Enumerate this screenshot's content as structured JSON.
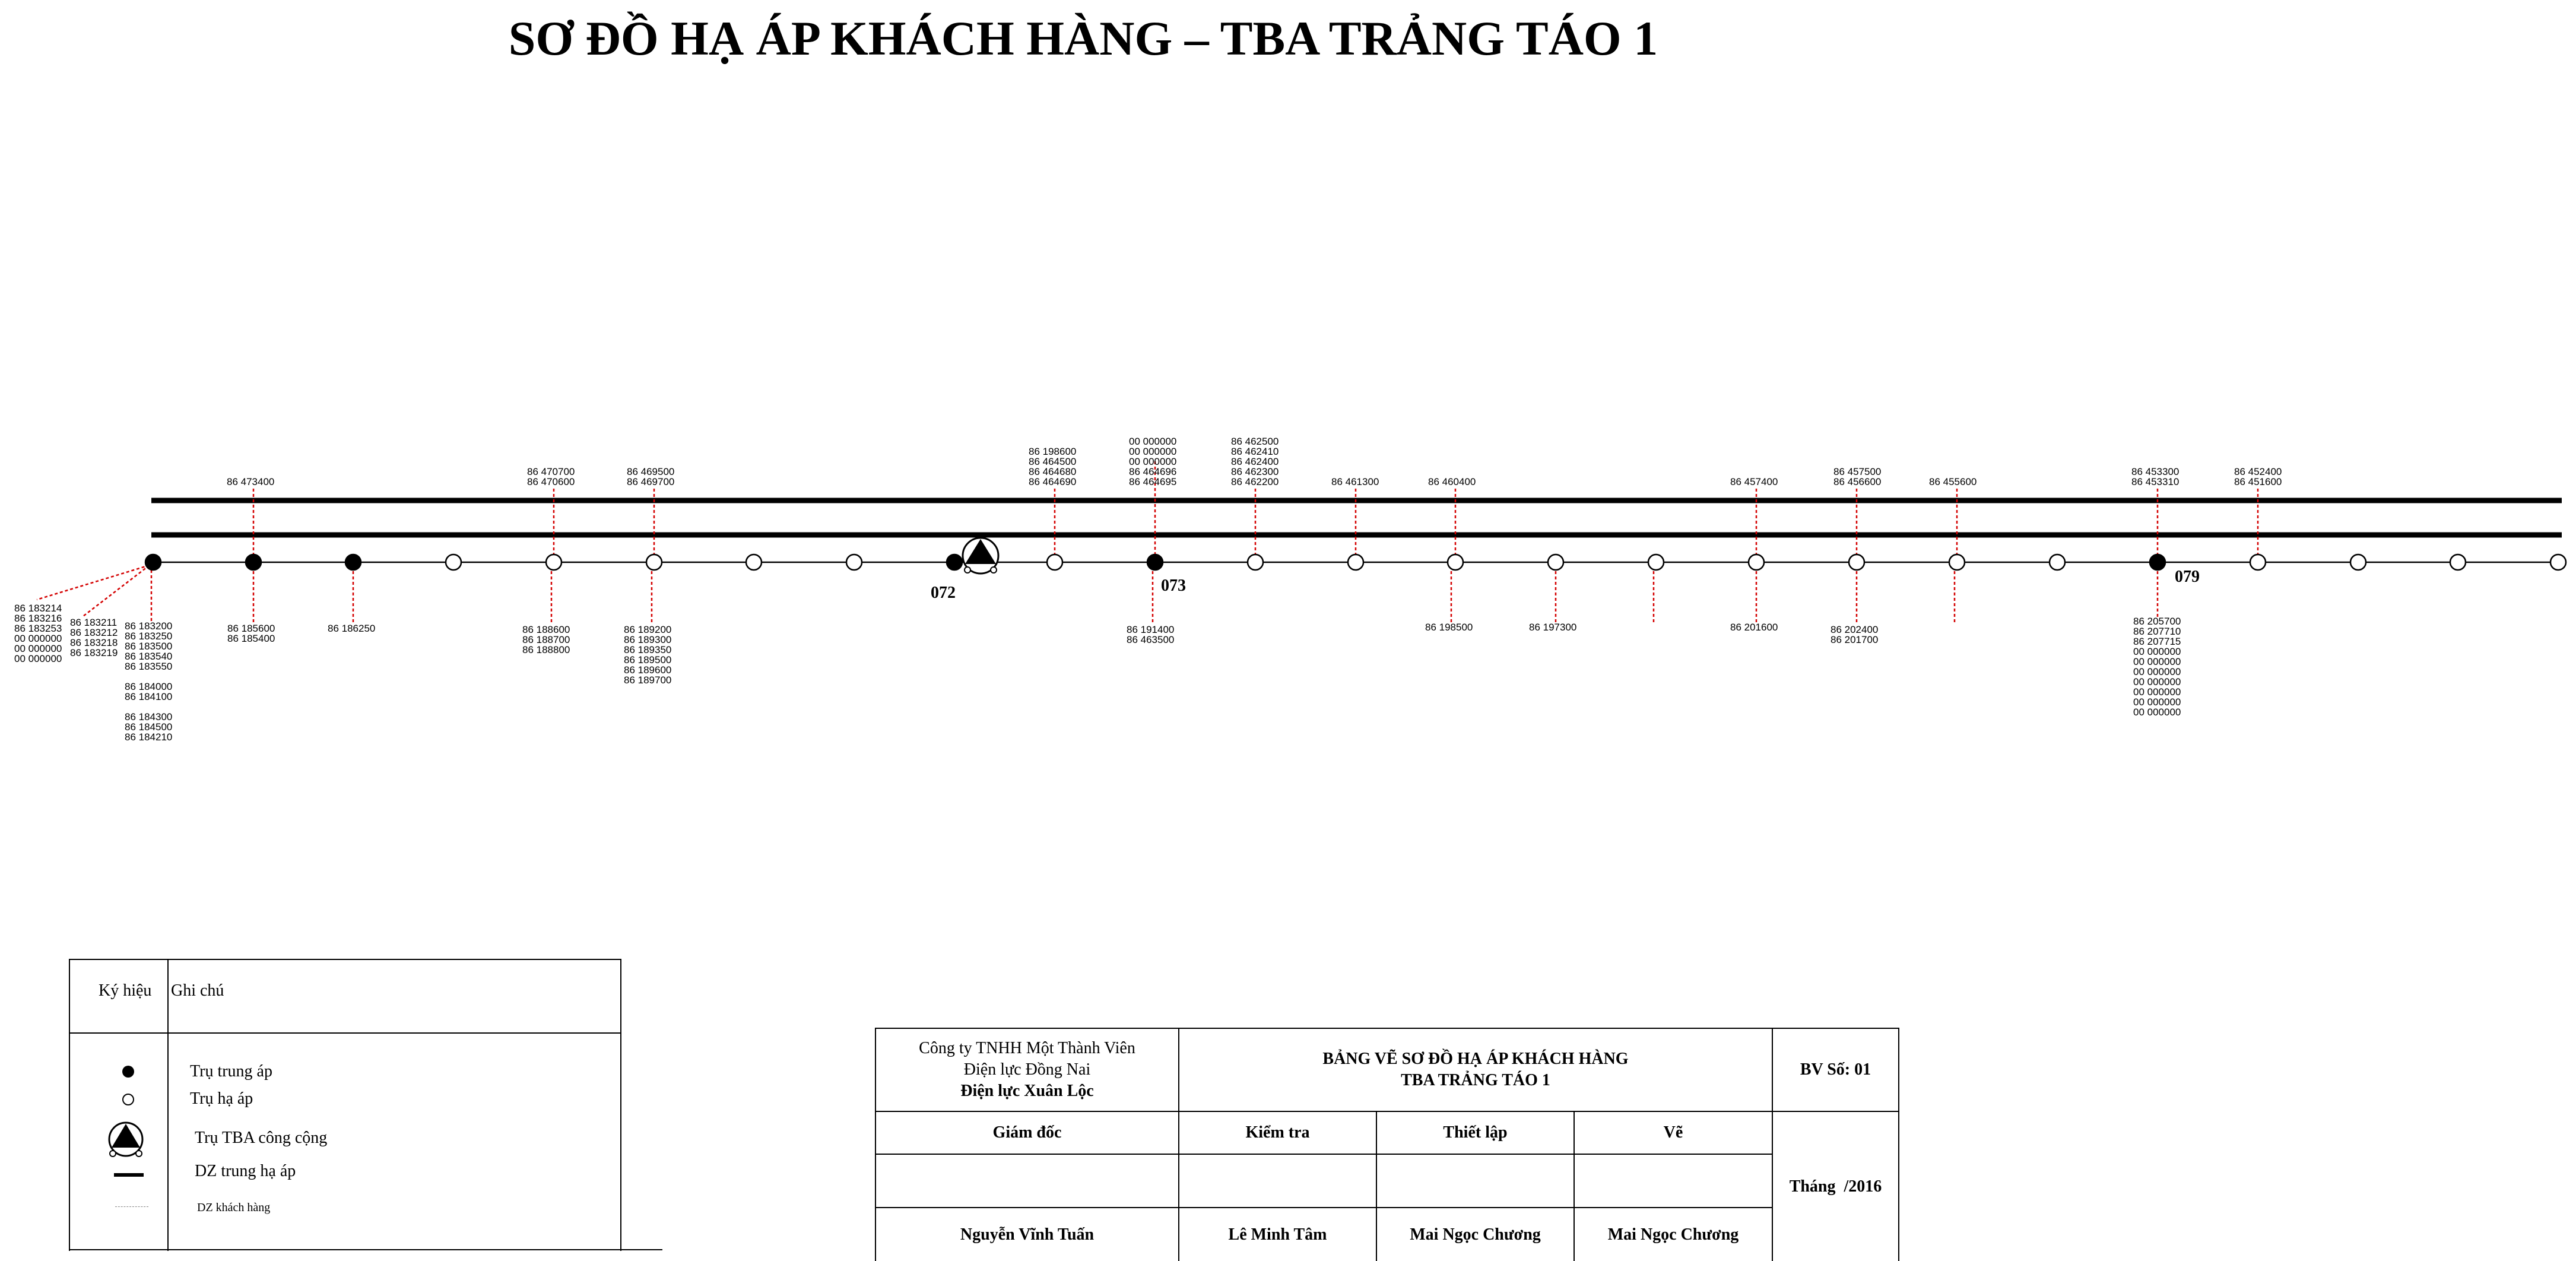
{
  "title": "SƠ ĐỒ HẠ ÁP KHÁCH HÀNG – TBA TRẢNG TÁO 1",
  "colors": {
    "line": "#000000",
    "customer_drop": "#d40000",
    "label": "#000000"
  },
  "poles": [
    {
      "type": "mv",
      "pos": 258
    },
    {
      "type": "mv",
      "pos": 427
    },
    {
      "type": "mv",
      "pos": 595
    },
    {
      "type": "lv",
      "pos": 764
    },
    {
      "type": "lv",
      "pos": 933
    },
    {
      "type": "lv",
      "pos": 1102
    },
    {
      "type": "lv",
      "pos": 1270
    },
    {
      "type": "lv",
      "pos": 1439
    },
    {
      "type": "mv",
      "pos": 1608
    },
    {
      "type": "lv",
      "pos": 1777
    },
    {
      "type": "mv",
      "pos": 1946
    },
    {
      "type": "lv",
      "pos": 2115
    },
    {
      "type": "lv",
      "pos": 2284
    },
    {
      "type": "lv",
      "pos": 2452
    },
    {
      "type": "lv",
      "pos": 2621
    },
    {
      "type": "lv",
      "pos": 2790
    },
    {
      "type": "lv",
      "pos": 2959
    },
    {
      "type": "lv",
      "pos": 3128
    },
    {
      "type": "lv",
      "pos": 3297
    },
    {
      "type": "lv",
      "pos": 3466
    },
    {
      "type": "mv",
      "pos": 3635
    },
    {
      "type": "lv",
      "pos": 3804
    },
    {
      "type": "lv",
      "pos": 3973
    },
    {
      "type": "lv",
      "pos": 4141
    },
    {
      "type": "lv",
      "pos": 4310
    }
  ],
  "pole_ids": [
    "072",
    "073",
    "079"
  ],
  "substation_label": "TBA",
  "customer_groups_above": [
    {
      "lines": [
        "86  473400"
      ]
    },
    {
      "lines": [
        "86  470700",
        "86  470600"
      ]
    },
    {
      "lines": [
        "86  469500",
        "86  469700"
      ]
    },
    {
      "lines": [
        "86  198600",
        "86  464500",
        "86  464680",
        "86  464690"
      ]
    },
    {
      "lines": [
        "00  000000",
        "00  000000",
        "00  000000",
        "86  464696",
        "86  464695"
      ]
    },
    {
      "lines": [
        "86  462500",
        "86  462410",
        "86  462400",
        "86  462300",
        "86  462200"
      ]
    },
    {
      "lines": [
        "86  461300"
      ]
    },
    {
      "lines": [
        "86  460400"
      ]
    },
    {
      "lines": [
        "86  457400"
      ]
    },
    {
      "lines": [
        "86  457500",
        "86  456600"
      ]
    },
    {
      "lines": [
        "86  455600"
      ]
    },
    {
      "lines": [
        "86  453300",
        "86  453310"
      ]
    },
    {
      "lines": [
        "86  452400",
        "86  451600"
      ]
    }
  ],
  "customer_groups_below": [
    {
      "lines": [
        "86  183214",
        "86  183216",
        "86  183253",
        "00  000000",
        "00  000000",
        "00  000000"
      ]
    },
    {
      "lines": [
        "86  183211",
        "86  183212",
        "86  183218",
        "86  183219"
      ]
    },
    {
      "lines": [
        "86  183200",
        "86  183250",
        "86  183500",
        "86  183540",
        "86  183550",
        "",
        "86  184000",
        "86  184100",
        "",
        "86  184300",
        "86  184500",
        "86  184210"
      ]
    },
    {
      "lines": [
        "86  185600",
        "86  185400"
      ]
    },
    {
      "lines": [
        "86  186250"
      ]
    },
    {
      "lines": [
        "86  188600",
        "86  188700",
        "86  188800"
      ]
    },
    {
      "lines": [
        "86  189200",
        "86  189300",
        "86  189350",
        "86  189500",
        "86  189600",
        "86  189700"
      ]
    },
    {
      "lines": [
        "86  191400",
        "86  463500"
      ]
    },
    {
      "lines": [
        "86  198500"
      ]
    },
    {
      "lines": [
        "86  197300"
      ]
    },
    {
      "lines": [
        "86  201600"
      ]
    },
    {
      "lines": [
        "86  202400",
        "86  201700"
      ]
    },
    {
      "lines": [
        "86  205700",
        "86  207710",
        "86  207715",
        "00  000000",
        "00  000000",
        "00  000000",
        "00  000000",
        "00  000000",
        "00  000000",
        "00  000000"
      ]
    }
  ],
  "legend": {
    "col_symbol": "Ký hiệu",
    "col_note": "Ghi chú",
    "items": [
      {
        "icon": "filled-circle-icon",
        "label": "Trụ trung áp"
      },
      {
        "icon": "hollow-circle-icon",
        "label": "Trụ hạ áp"
      },
      {
        "icon": "substation-triangle-icon",
        "label": "Trụ TBA công cộng"
      },
      {
        "icon": "thick-line-icon",
        "label": "DZ trung hạ áp"
      },
      {
        "icon": "dashed-line-icon",
        "label": "DZ khách hàng"
      }
    ]
  },
  "title_block": {
    "company_line1": "Công ty TNHH Một Thành Viên",
    "company_line2": "Điện lực Đồng Nai",
    "company_line3": "Điện lực Xuân Lộc",
    "drawing_line1": "BẢNG VẼ SƠ ĐỒ HẠ ÁP KHÁCH HÀNG",
    "drawing_line2": "TBA TRẢNG TÁO 1",
    "sheet_no": "BV Số: 01",
    "role_director": "Giám đốc",
    "role_check": "Kiểm tra",
    "role_setup": "Thiết lập",
    "role_draw": "Vẽ",
    "month_label": "Tháng",
    "year_label": "/2016",
    "name_director": "Nguyễn Vĩnh Tuấn",
    "name_check": "Lê Minh Tâm",
    "name_setup": "Mai Ngọc Chương",
    "name_draw": "Mai Ngọc Chương"
  }
}
